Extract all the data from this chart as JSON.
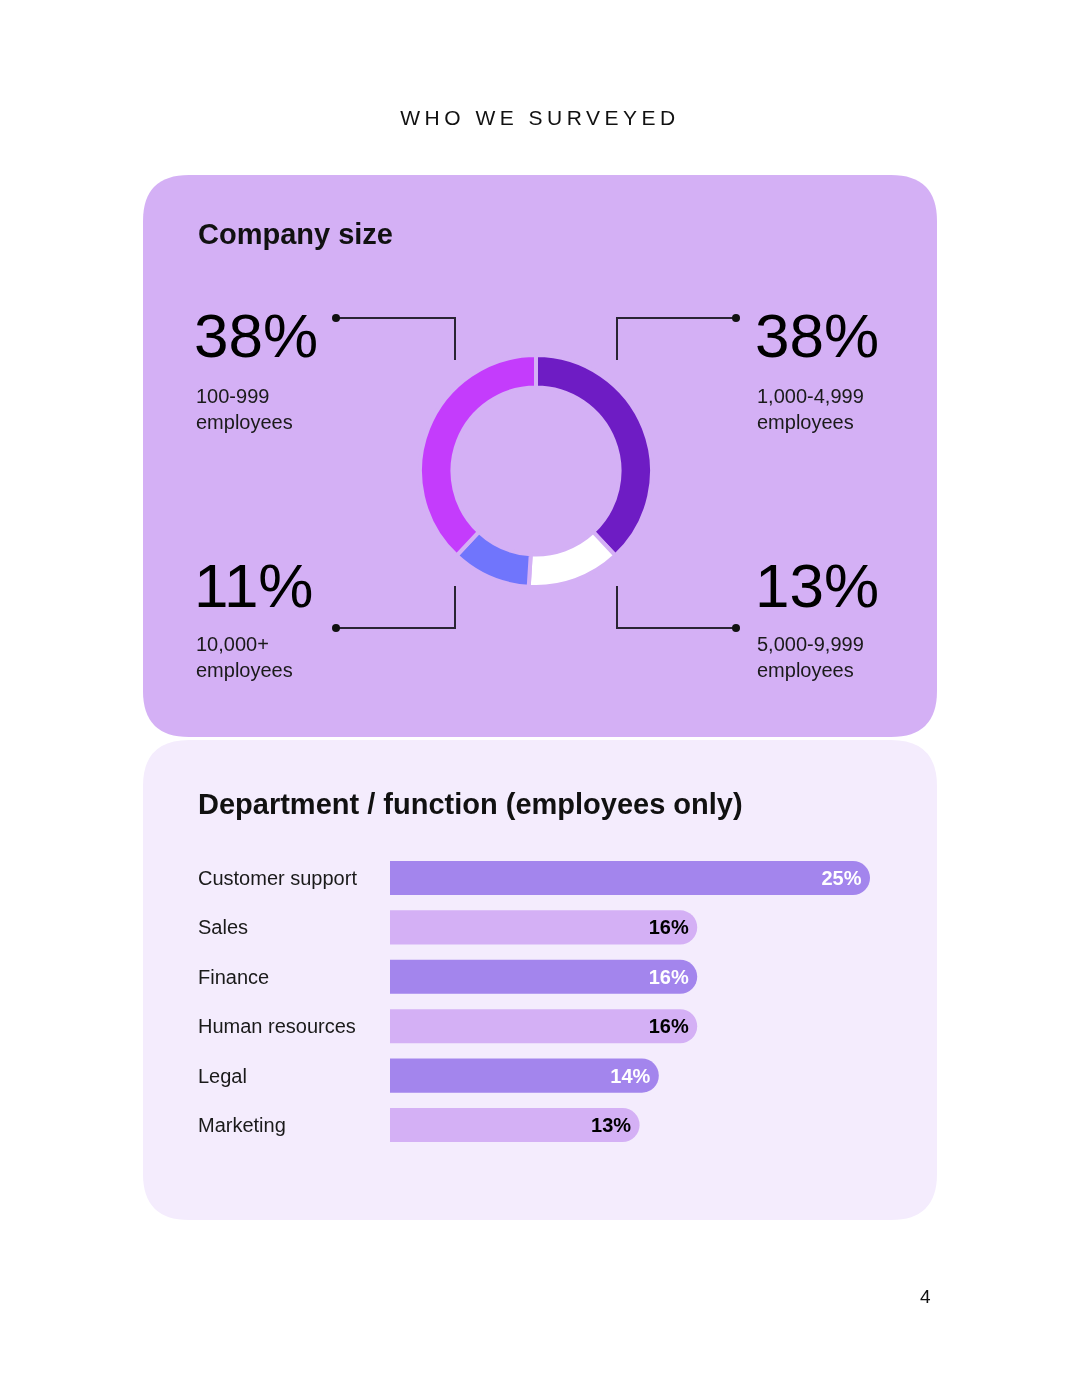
{
  "chart_data": [
    {
      "type": "donut",
      "title": "WHO WE SURVEYED",
      "subtitle": "Company size",
      "categories": [
        "1,000-4,999 employees",
        "5,000-9,999 employees",
        "10,000+ employees",
        "100-999 employees"
      ],
      "values": [
        38,
        13,
        11,
        38
      ],
      "colors": [
        "#6e1cc4",
        "#ffffff",
        "#7075fc",
        "#c43cfc"
      ],
      "value_labels": [
        "38%",
        "13%",
        "11%",
        "38%"
      ]
    },
    {
      "type": "bar",
      "orientation": "horizontal",
      "title": "Department / function (employees only)",
      "categories": [
        "Customer support",
        "Sales",
        "Finance",
        "Human resources",
        "Legal",
        "Marketing"
      ],
      "values": [
        25,
        16,
        16,
        16,
        14,
        13
      ],
      "colors": [
        "#a385ed",
        "#d4b0f5",
        "#a385ed",
        "#d4b0f5",
        "#a385ed",
        "#d4b0f5"
      ],
      "value_labels": [
        "25%",
        "16%",
        "16%",
        "16%",
        "14%",
        "13%"
      ],
      "annotations": [
        "4"
      ]
    }
  ]
}
